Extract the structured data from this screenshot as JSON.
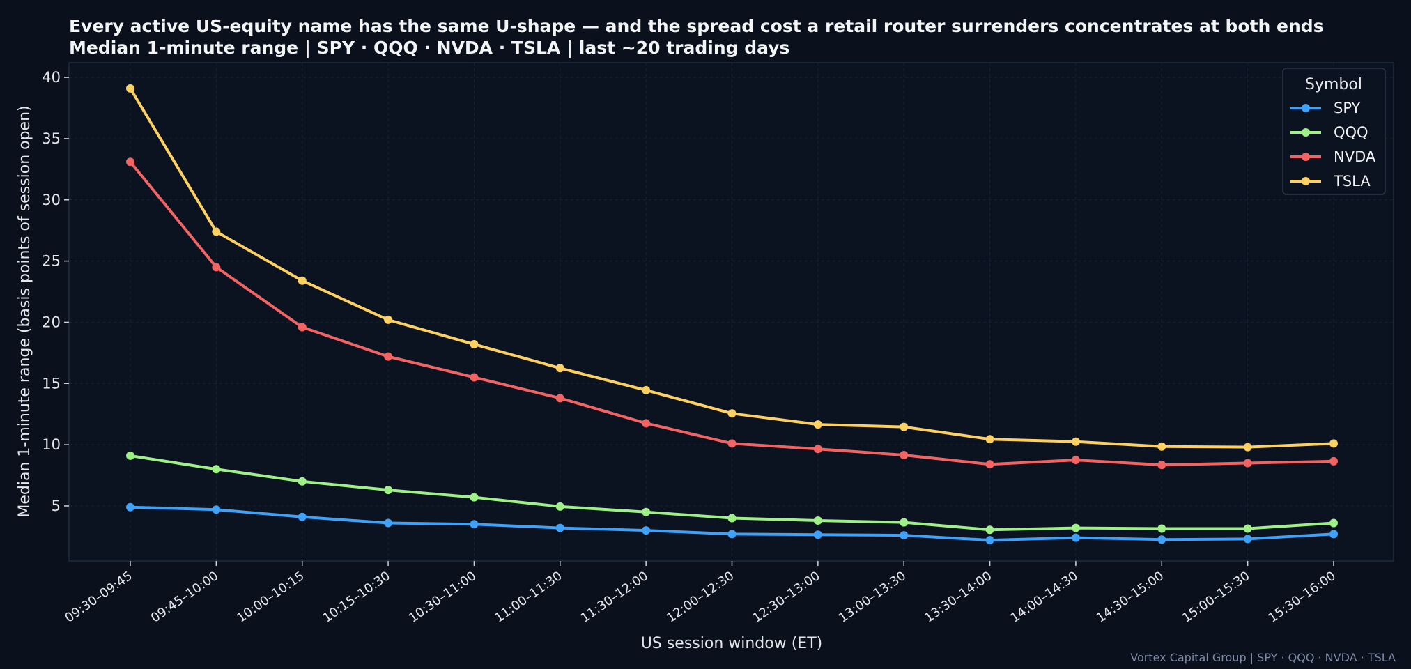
{
  "title_line1": "Every active US-equity name has the same U-shape — and the spread cost a retail router surrenders concentrates at both ends",
  "title_line2": "Median 1-minute range  |  SPY · QQQ · NVDA · TSLA  |  last ~20 trading days",
  "footer": "Vortex Capital Group  |  SPY · QQQ · NVDA · TSLA",
  "colors": {
    "background": "#0b111c",
    "plot_background": "#0b1220",
    "grid": "#1a2434",
    "spine": "#1f2b3d",
    "SPY": "#3fa2f7",
    "QQQ": "#9ef087",
    "NVDA": "#f26464",
    "TSLA": "#fdd062"
  },
  "chart_data": {
    "type": "line",
    "xlabel": "US session window  (ET)",
    "ylabel": "Median 1-minute range  (basis points of session open)",
    "categories": [
      "09:30–09:45",
      "09:45–10:00",
      "10:00–10:15",
      "10:15–10:30",
      "10:30–11:00",
      "11:00–11:30",
      "11:30–12:00",
      "12:00–12:30",
      "12:30–13:00",
      "13:00–13:30",
      "13:30–14:00",
      "14:00–14:30",
      "14:30–15:00",
      "15:00–15:30",
      "15:30–16:00"
    ],
    "yticks": [
      5,
      10,
      15,
      20,
      25,
      30,
      35,
      40
    ],
    "ylim": [
      0.5,
      41.2
    ],
    "grid": true,
    "legend": {
      "title": "Symbol",
      "placement": "top-right"
    },
    "series": [
      {
        "name": "SPY",
        "color": "#3fa2f7",
        "values": [
          4.9,
          4.7,
          4.1,
          3.6,
          3.5,
          3.2,
          3.0,
          2.7,
          2.65,
          2.6,
          2.2,
          2.4,
          2.25,
          2.3,
          2.7
        ]
      },
      {
        "name": "QQQ",
        "color": "#9ef087",
        "values": [
          9.1,
          8.0,
          7.0,
          6.3,
          5.7,
          4.95,
          4.5,
          4.0,
          3.8,
          3.65,
          3.05,
          3.2,
          3.15,
          3.15,
          3.6
        ]
      },
      {
        "name": "NVDA",
        "color": "#f26464",
        "values": [
          33.1,
          24.5,
          19.6,
          17.2,
          15.5,
          13.8,
          11.75,
          10.1,
          9.65,
          9.15,
          8.4,
          8.75,
          8.35,
          8.5,
          8.65
        ]
      },
      {
        "name": "TSLA",
        "color": "#fdd062",
        "values": [
          39.1,
          27.4,
          23.4,
          20.2,
          18.2,
          16.25,
          14.45,
          12.55,
          11.65,
          11.45,
          10.45,
          10.25,
          9.85,
          9.8,
          10.1
        ]
      }
    ]
  }
}
